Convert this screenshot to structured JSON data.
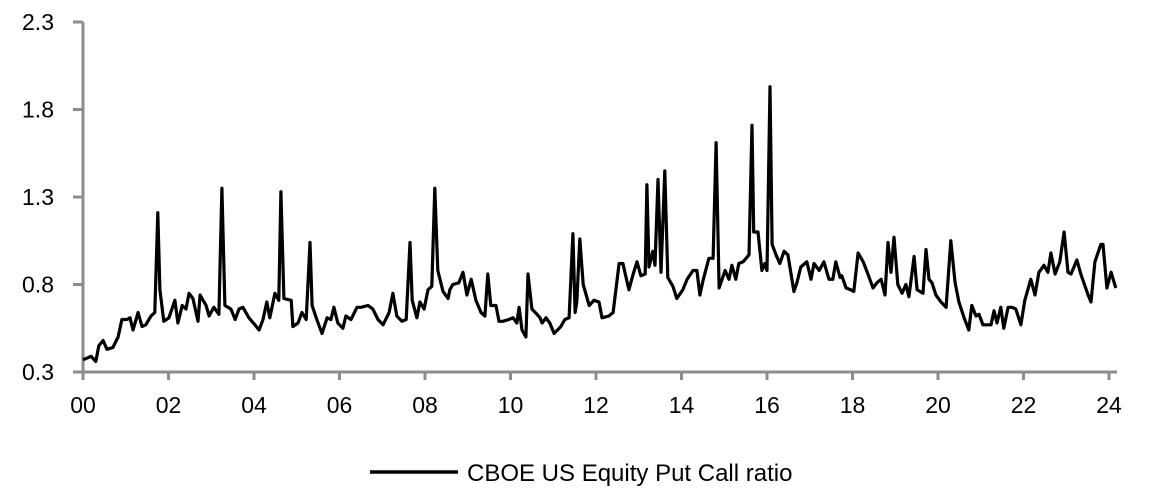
{
  "chart_data": {
    "type": "line",
    "title": "",
    "xlabel": "",
    "ylabel": "",
    "xlim": [
      2000,
      2024.2
    ],
    "ylim": [
      0.3,
      2.3
    ],
    "y_ticks": [
      "0.3",
      "0.8",
      "1.3",
      "1.8",
      "2.3"
    ],
    "y_tick_values": [
      0.3,
      0.8,
      1.3,
      1.8,
      2.3
    ],
    "x_ticks": [
      "00",
      "02",
      "04",
      "06",
      "08",
      "10",
      "12",
      "14",
      "16",
      "18",
      "20",
      "22",
      "24"
    ],
    "x_tick_values": [
      2000,
      2002,
      2004,
      2006,
      2008,
      2010,
      2012,
      2014,
      2016,
      2018,
      2020,
      2022,
      2024
    ],
    "grid": false,
    "legend_position": "bottom",
    "axis_color": "#8c8c8c",
    "series": [
      {
        "name": "CBOE US Equity Put Call ratio",
        "color": "#000000",
        "x": [
          2000.0,
          2000.19,
          2000.3,
          2000.37,
          2000.47,
          2000.56,
          2000.7,
          2000.82,
          2000.91,
          2001.03,
          2001.1,
          2001.17,
          2001.29,
          2001.38,
          2001.47,
          2001.59,
          2001.68,
          2001.75,
          2001.8,
          2001.89,
          2002.01,
          2002.15,
          2002.22,
          2002.32,
          2002.41,
          2002.48,
          2002.57,
          2002.69,
          2002.74,
          2002.88,
          2002.95,
          2003.06,
          2003.18,
          2003.25,
          2003.32,
          2003.46,
          2003.56,
          2003.65,
          2003.74,
          2003.88,
          2004.02,
          2004.12,
          2004.21,
          2004.3,
          2004.37,
          2004.49,
          2004.58,
          2004.63,
          2004.7,
          2004.87,
          2004.91,
          2005.03,
          2005.12,
          2005.22,
          2005.31,
          2005.36,
          2005.47,
          2005.59,
          2005.71,
          2005.8,
          2005.87,
          2005.96,
          2006.08,
          2006.15,
          2006.27,
          2006.41,
          2006.5,
          2006.67,
          2006.78,
          2006.9,
          2007.02,
          2007.16,
          2007.25,
          2007.34,
          2007.46,
          2007.56,
          2007.65,
          2007.7,
          2007.81,
          2007.88,
          2007.98,
          2008.07,
          2008.16,
          2008.23,
          2008.3,
          2008.42,
          2008.54,
          2008.58,
          2008.65,
          2008.79,
          2008.89,
          2008.98,
          2009.08,
          2009.19,
          2009.31,
          2009.4,
          2009.47,
          2009.54,
          2009.66,
          2009.73,
          2009.82,
          2009.96,
          2010.06,
          2010.15,
          2010.2,
          2010.27,
          2010.36,
          2010.41,
          2010.5,
          2010.62,
          2010.69,
          2010.74,
          2010.83,
          2010.92,
          2011.02,
          2011.18,
          2011.27,
          2011.37,
          2011.46,
          2011.51,
          2011.55,
          2011.62,
          2011.7,
          2011.84,
          2011.95,
          2012.07,
          2012.14,
          2012.3,
          2012.4,
          2012.54,
          2012.63,
          2012.77,
          2012.87,
          2012.96,
          2013.05,
          2013.15,
          2013.19,
          2013.24,
          2013.33,
          2013.38,
          2013.45,
          2013.52,
          2013.61,
          2013.68,
          2013.8,
          2013.89,
          2014.03,
          2014.13,
          2014.27,
          2014.36,
          2014.43,
          2014.5,
          2014.64,
          2014.74,
          2014.81,
          2014.88,
          2015.02,
          2015.11,
          2015.18,
          2015.27,
          2015.34,
          2015.44,
          2015.58,
          2015.65,
          2015.69,
          2015.79,
          2015.88,
          2015.95,
          2016.0,
          2016.07,
          2016.12,
          2016.21,
          2016.3,
          2016.4,
          2016.49,
          2016.63,
          2016.7,
          2016.79,
          2016.93,
          2017.03,
          2017.1,
          2017.22,
          2017.33,
          2017.45,
          2017.54,
          2017.61,
          2017.71,
          2017.75,
          2017.85,
          2017.96,
          2018.03,
          2018.13,
          2018.25,
          2018.36,
          2018.48,
          2018.57,
          2018.67,
          2018.76,
          2018.83,
          2018.9,
          2018.97,
          2019.06,
          2019.16,
          2019.25,
          2019.32,
          2019.44,
          2019.51,
          2019.65,
          2019.72,
          2019.79,
          2019.86,
          2019.95,
          2020.07,
          2020.19,
          2020.3,
          2020.4,
          2020.49,
          2020.61,
          2020.72,
          2020.79,
          2020.89,
          2020.96,
          2021.05,
          2021.15,
          2021.24,
          2021.31,
          2021.38,
          2021.47,
          2021.54,
          2021.64,
          2021.73,
          2021.82,
          2021.94,
          2022.03,
          2022.17,
          2022.27,
          2022.36,
          2022.48,
          2022.57,
          2022.64,
          2022.74,
          2022.85,
          2022.95,
          2023.04,
          2023.11,
          2023.25,
          2023.34,
          2023.51,
          2023.58,
          2023.67,
          2023.81,
          2023.86,
          2023.95,
          2024.05,
          2024.16
        ],
        "y": [
          0.37,
          0.39,
          0.36,
          0.45,
          0.48,
          0.43,
          0.44,
          0.5,
          0.6,
          0.6,
          0.61,
          0.54,
          0.64,
          0.56,
          0.57,
          0.62,
          0.64,
          1.21,
          0.77,
          0.59,
          0.61,
          0.71,
          0.58,
          0.68,
          0.66,
          0.75,
          0.72,
          0.59,
          0.74,
          0.68,
          0.62,
          0.67,
          0.63,
          1.35,
          0.68,
          0.66,
          0.6,
          0.66,
          0.67,
          0.61,
          0.57,
          0.54,
          0.6,
          0.7,
          0.61,
          0.75,
          0.71,
          1.33,
          0.72,
          0.71,
          0.56,
          0.58,
          0.64,
          0.6,
          1.04,
          0.68,
          0.6,
          0.52,
          0.61,
          0.6,
          0.67,
          0.58,
          0.55,
          0.62,
          0.6,
          0.67,
          0.67,
          0.68,
          0.66,
          0.6,
          0.57,
          0.64,
          0.75,
          0.62,
          0.59,
          0.6,
          1.04,
          0.71,
          0.61,
          0.7,
          0.66,
          0.77,
          0.79,
          1.35,
          0.88,
          0.76,
          0.72,
          0.77,
          0.8,
          0.81,
          0.87,
          0.74,
          0.83,
          0.71,
          0.64,
          0.62,
          0.86,
          0.68,
          0.68,
          0.59,
          0.59,
          0.6,
          0.61,
          0.58,
          0.67,
          0.54,
          0.5,
          0.86,
          0.66,
          0.63,
          0.61,
          0.58,
          0.61,
          0.58,
          0.52,
          0.56,
          0.6,
          0.61,
          1.09,
          0.64,
          0.7,
          1.06,
          0.8,
          0.68,
          0.71,
          0.7,
          0.61,
          0.62,
          0.64,
          0.92,
          0.92,
          0.77,
          0.86,
          0.93,
          0.85,
          0.86,
          1.37,
          0.9,
          0.99,
          0.91,
          1.4,
          0.87,
          1.45,
          0.84,
          0.79,
          0.72,
          0.77,
          0.83,
          0.88,
          0.88,
          0.74,
          0.82,
          0.95,
          0.95,
          1.61,
          0.78,
          0.88,
          0.83,
          0.91,
          0.83,
          0.92,
          0.93,
          0.97,
          1.71,
          1.1,
          1.1,
          0.88,
          0.92,
          0.88,
          1.93,
          1.03,
          0.97,
          0.92,
          0.99,
          0.97,
          0.76,
          0.81,
          0.9,
          0.93,
          0.83,
          0.92,
          0.88,
          0.93,
          0.83,
          0.83,
          0.93,
          0.84,
          0.85,
          0.78,
          0.77,
          0.76,
          0.98,
          0.93,
          0.86,
          0.78,
          0.81,
          0.83,
          0.74,
          1.04,
          0.87,
          1.07,
          0.8,
          0.75,
          0.8,
          0.73,
          0.96,
          0.77,
          0.75,
          1.0,
          0.83,
          0.81,
          0.74,
          0.7,
          0.67,
          1.05,
          0.81,
          0.7,
          0.61,
          0.54,
          0.68,
          0.62,
          0.63,
          0.57,
          0.57,
          0.57,
          0.65,
          0.58,
          0.67,
          0.55,
          0.67,
          0.67,
          0.66,
          0.57,
          0.71,
          0.83,
          0.74,
          0.87,
          0.91,
          0.87,
          0.98,
          0.86,
          0.93,
          1.1,
          0.87,
          0.86,
          0.94,
          0.86,
          0.74,
          0.7,
          0.93,
          1.03,
          1.03,
          0.78,
          0.87,
          0.78
        ]
      }
    ]
  }
}
